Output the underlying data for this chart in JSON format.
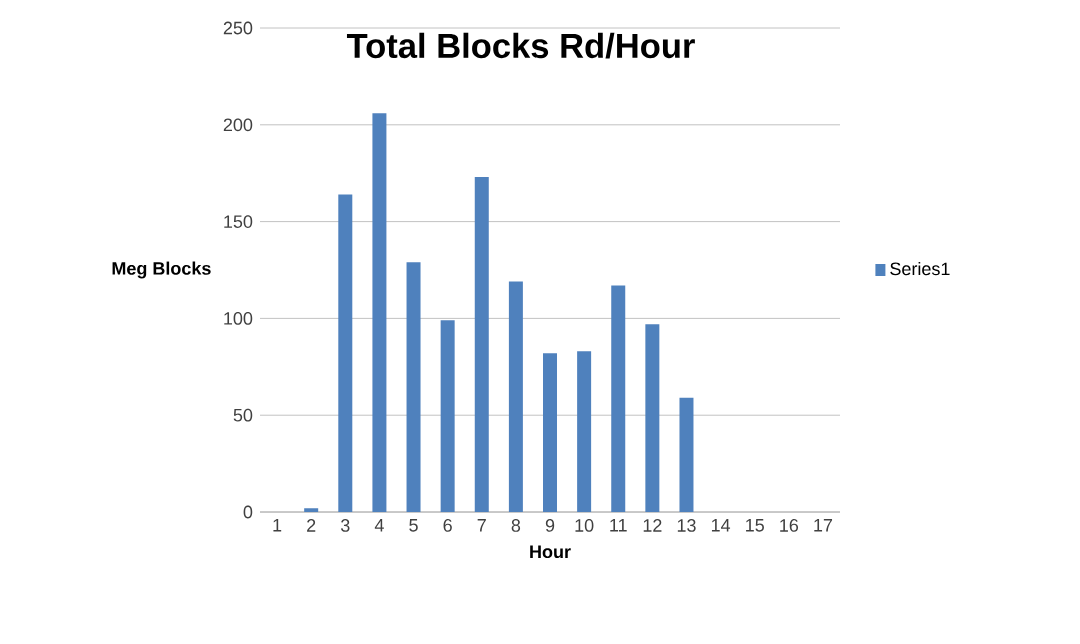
{
  "chart_data": {
    "type": "bar",
    "title": "Total Blocks Rd/Hour",
    "xlabel": "Hour",
    "ylabel": "Meg Blocks",
    "categories": [
      "1",
      "2",
      "3",
      "4",
      "5",
      "6",
      "7",
      "8",
      "9",
      "10",
      "11",
      "12",
      "13",
      "14",
      "15",
      "16",
      "17"
    ],
    "series": [
      {
        "name": "Series1",
        "color": "#4f81bd",
        "values": [
          0,
          2,
          164,
          206,
          129,
          99,
          173,
          119,
          82,
          83,
          117,
          97,
          59,
          0,
          0,
          0,
          0
        ]
      }
    ],
    "ylim": [
      0,
      250
    ],
    "yticks": [
      0,
      50,
      100,
      150,
      200,
      250
    ],
    "grid": "y",
    "legend": "right"
  }
}
